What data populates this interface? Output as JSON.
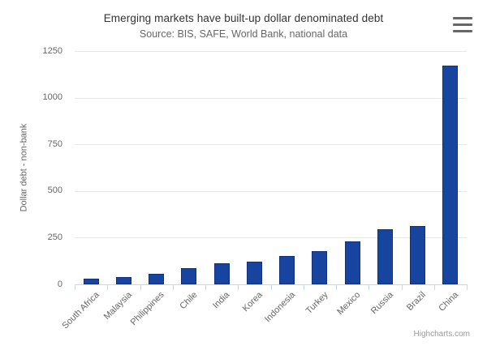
{
  "chart_data": {
    "type": "bar",
    "title": "Emerging markets have built-up dollar denominated debt",
    "subtitle": "Source: BIS, SAFE, World Bank, national data",
    "categories": [
      "South Africa",
      "Malaysia",
      "Philippines",
      "Chile",
      "India",
      "Korea",
      "Indonesia",
      "Turkey",
      "Mexico",
      "Russia",
      "Brazil",
      "China"
    ],
    "values": [
      32,
      37,
      55,
      85,
      111,
      122,
      150,
      176,
      229,
      293,
      313,
      1170
    ],
    "xlabel": "",
    "ylabel": "Dollar debt - non-bank",
    "ylim": [
      0,
      1250
    ],
    "yticks": [
      0,
      250,
      500,
      750,
      1000,
      1250
    ],
    "grid": true,
    "legend": false
  },
  "menu": {
    "icon": "hamburger-icon"
  },
  "credits": {
    "label": "Highcharts.com"
  },
  "colors": {
    "bar_fill": "#17449E",
    "bar_border": "#10307E",
    "gridline": "#E6E6E6",
    "axis_line": "#CCD6EB",
    "title_text": "#333333",
    "subtitle_text": "#666666",
    "axis_label_text": "#666666",
    "credits_text": "#999999"
  }
}
